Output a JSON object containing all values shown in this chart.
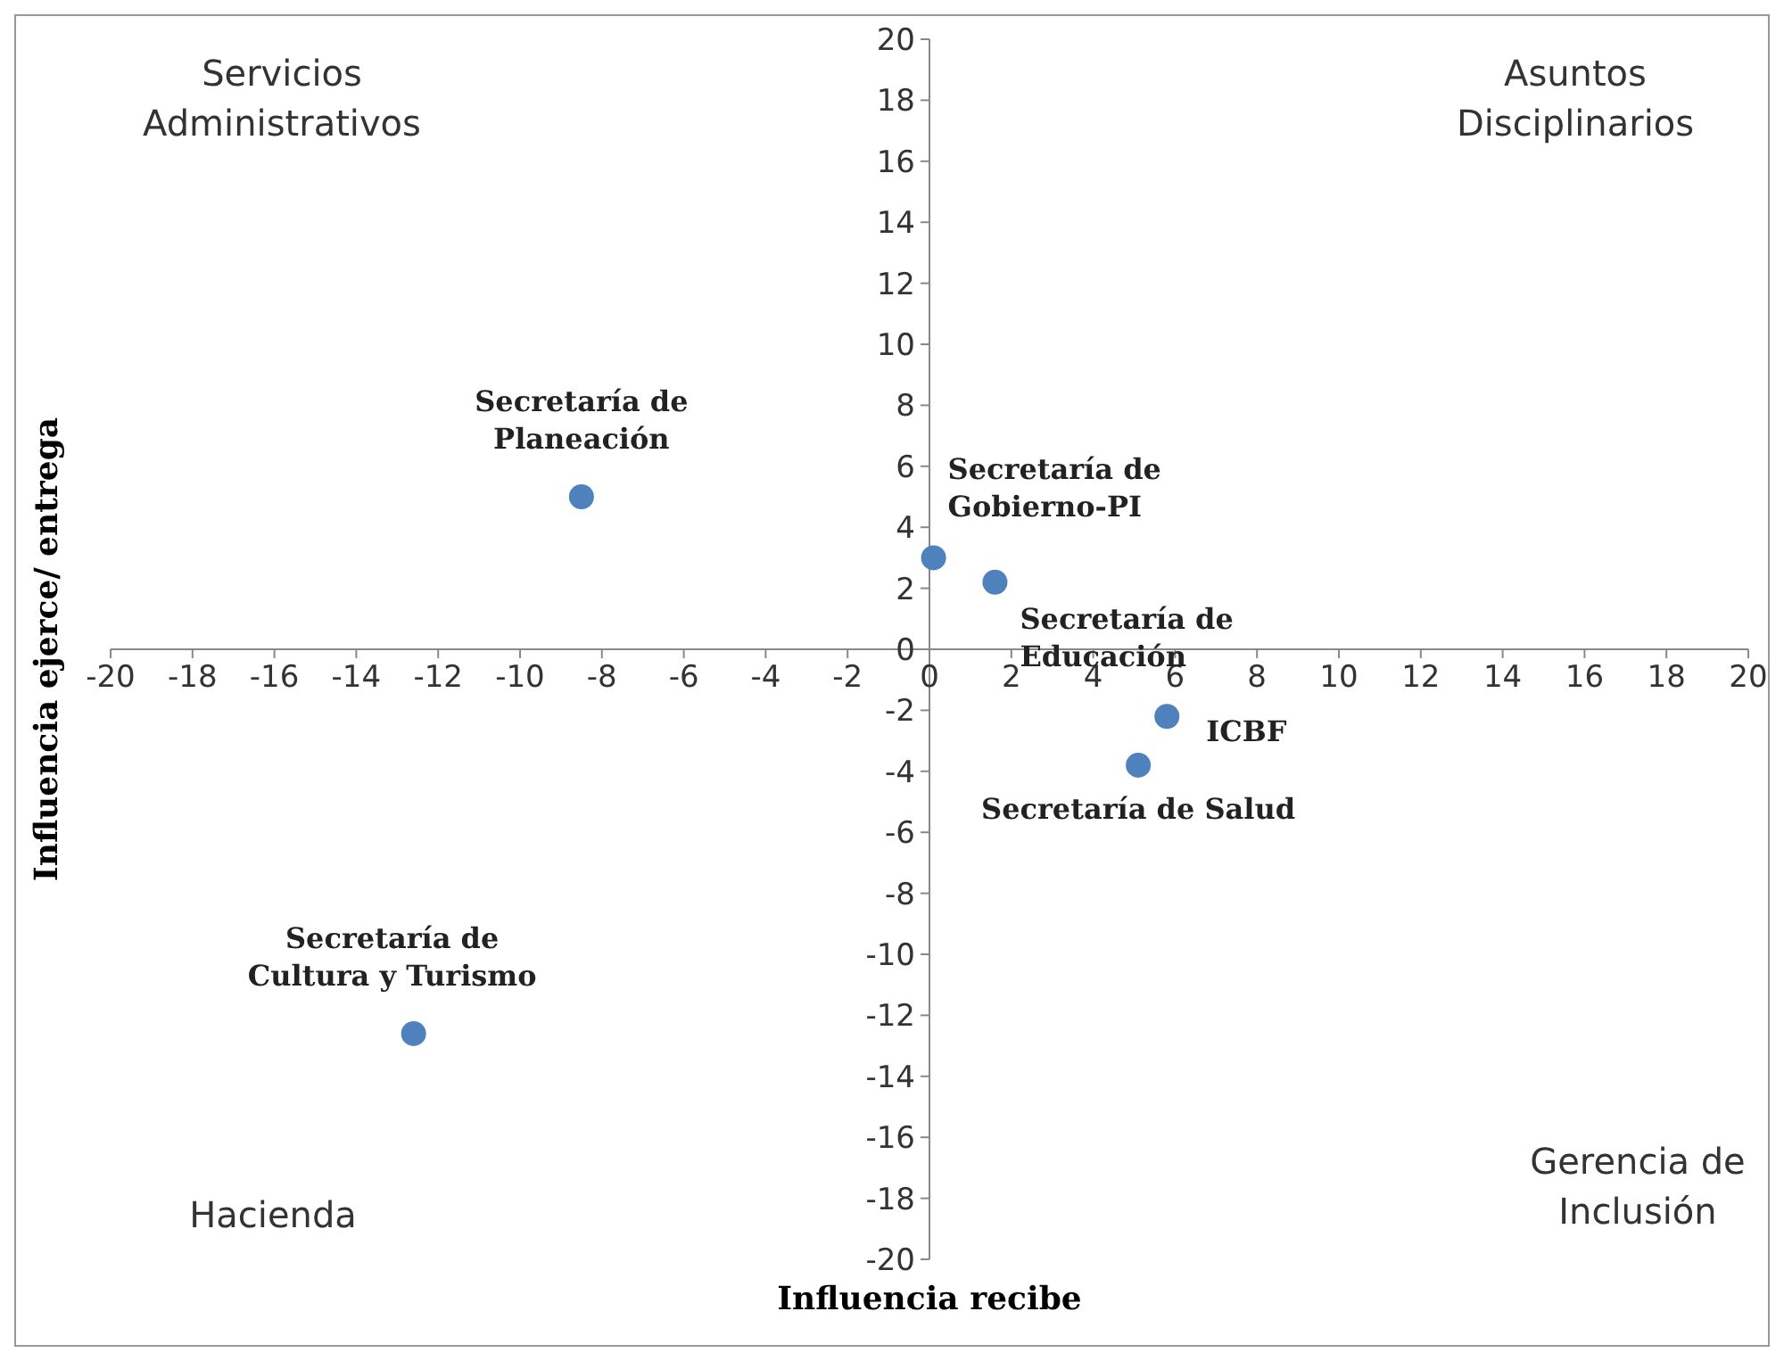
{
  "chart_data": {
    "type": "scatter",
    "xlabel": "Influencia recibe",
    "ylabel": "Influencia ejerce/ entrega",
    "x": [
      -8.5,
      0.1,
      1.6,
      5.8,
      5.1,
      -12.6
    ],
    "values": [
      5,
      3,
      2.2,
      -2.2,
      -3.8,
      -12.6
    ],
    "color": "#4f81bd",
    "marker": "circle",
    "grid": false,
    "xlim": [
      -20,
      20
    ],
    "ylim": [
      -20,
      20
    ],
    "xticks": [
      -20,
      -18,
      -16,
      -14,
      -12,
      -10,
      -8,
      -6,
      -4,
      -2,
      0,
      2,
      4,
      6,
      8,
      10,
      12,
      14,
      16,
      18,
      20
    ],
    "yticks": [
      -20,
      -18,
      -16,
      -14,
      -12,
      -10,
      -8,
      -6,
      -4,
      -2,
      0,
      2,
      4,
      6,
      8,
      10,
      12,
      14,
      16,
      18,
      20
    ],
    "annotations": [
      "Servicios Administrativos",
      "Asuntos Disciplinarios",
      "Hacienda",
      "Gerencia de Inclusión",
      {
        "text": "Secretaría de Planeación",
        "x": -8.5,
        "y": 5
      },
      {
        "text": "Secretaría de Gobierno-PI",
        "x": 0.1,
        "y": 3
      },
      {
        "text": "Secretaría de Educación",
        "x": 1.6,
        "y": 2.2
      },
      {
        "text": "ICBF",
        "x": 5.8,
        "y": -2.2
      },
      {
        "text": "Secretaría de Salud",
        "x": 5.1,
        "y": -3.8
      },
      {
        "text": "Secretaría de Cultura y Turismo",
        "x": -12.6,
        "y": -12.6
      }
    ]
  }
}
